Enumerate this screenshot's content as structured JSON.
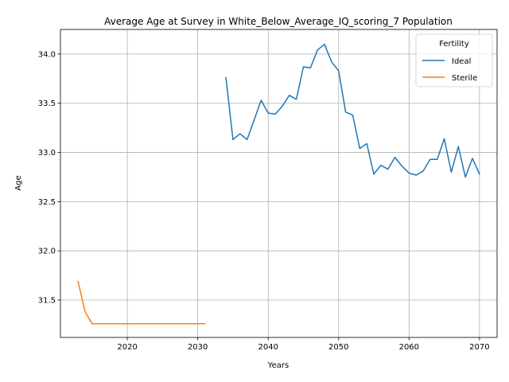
{
  "chart_data": {
    "type": "line",
    "title": "Average Age at Survey in White_Below_Average_IQ_scoring_7 Population",
    "xlabel": "Years",
    "ylabel": "Age",
    "xlim": [
      2010.5,
      2072.5
    ],
    "ylim": [
      31.12,
      34.25
    ],
    "xticks": [
      2020,
      2030,
      2040,
      2050,
      2060,
      2070
    ],
    "yticks": [
      31.5,
      32.0,
      32.5,
      33.0,
      33.5,
      34.0
    ],
    "xtick_labels": [
      "2020",
      "2030",
      "2040",
      "2050",
      "2060",
      "2070"
    ],
    "ytick_labels": [
      "31.5",
      "32.0",
      "32.5",
      "33.0",
      "33.5",
      "34.0"
    ],
    "grid": true,
    "legend": {
      "title": "Fertility",
      "placement": "top-right"
    },
    "series": [
      {
        "name": "Ideal",
        "color": "#1f77b4",
        "x": [
          2034,
          2035,
          2036,
          2037,
          2038,
          2039,
          2040,
          2041,
          2042,
          2043,
          2044,
          2045,
          2046,
          2047,
          2048,
          2049,
          2050,
          2051,
          2052,
          2053,
          2054,
          2055,
          2056,
          2057,
          2058,
          2059,
          2060,
          2061,
          2062,
          2063,
          2064,
          2065,
          2066,
          2067,
          2068,
          2069,
          2070
        ],
        "y": [
          33.76,
          33.13,
          33.19,
          33.13,
          33.33,
          33.53,
          33.4,
          33.39,
          33.47,
          33.58,
          33.54,
          33.87,
          33.86,
          34.04,
          34.1,
          33.92,
          33.83,
          33.41,
          33.38,
          33.04,
          33.09,
          32.78,
          32.87,
          32.83,
          32.95,
          32.86,
          32.79,
          32.77,
          32.81,
          32.93,
          32.93,
          33.14,
          32.8,
          33.06,
          32.75,
          32.94,
          32.78
        ]
      },
      {
        "name": "Sterile",
        "color": "#ff7f0e",
        "x": [
          2013,
          2014,
          2015,
          2016,
          2017,
          2018,
          2019,
          2020,
          2021,
          2022,
          2023,
          2024,
          2025,
          2026,
          2027,
          2028,
          2029,
          2030,
          2031
        ],
        "y": [
          31.69,
          31.38,
          31.26,
          31.26,
          31.26,
          31.26,
          31.26,
          31.26,
          31.26,
          31.26,
          31.26,
          31.26,
          31.26,
          31.26,
          31.26,
          31.26,
          31.26,
          31.26,
          31.26
        ]
      }
    ]
  }
}
